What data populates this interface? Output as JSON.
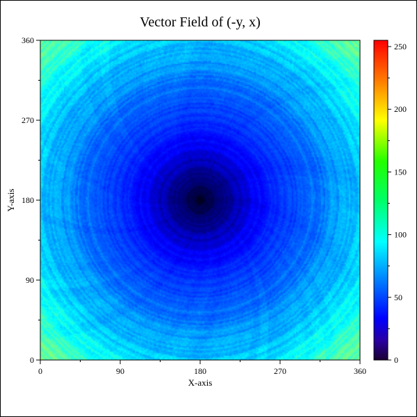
{
  "chart_data": {
    "type": "heatmap",
    "title": "Vector Field of (-y, x)",
    "xlabel": "X-axis",
    "ylabel": "Y-axis",
    "xlim": [
      0,
      360
    ],
    "ylim": [
      0,
      360
    ],
    "x_ticks": [
      0,
      90,
      180,
      270,
      360
    ],
    "y_ticks": [
      0,
      90,
      180,
      270,
      360
    ],
    "colorbar": {
      "range": [
        0,
        255
      ],
      "ticks": [
        0,
        50,
        100,
        150,
        200,
        250
      ],
      "colormap": "jet"
    },
    "field": {
      "formula": "(-y, x)",
      "center": [
        180,
        180
      ],
      "value_at_center": 0,
      "value_at_edge_midpoints": 80,
      "value_at_corners": 125,
      "texture": "circular streaks"
    }
  }
}
